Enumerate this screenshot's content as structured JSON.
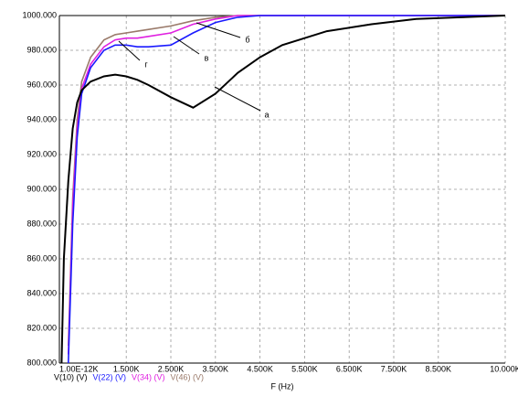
{
  "chart_data": {
    "type": "line",
    "x_label": "F (Hz)",
    "x": [
      50,
      100,
      200,
      300,
      400,
      500,
      700,
      1000,
      1250,
      1500,
      1750,
      2000,
      2500,
      3000,
      3500,
      4000,
      4500,
      5000,
      6000,
      7000,
      8000,
      9000,
      10000
    ],
    "series": [
      {
        "name": "V(10) (V)",
        "color": "#000000",
        "values": [
          800,
          860,
          905,
          935,
          950,
          957,
          962,
          965,
          966,
          965,
          963,
          960,
          953,
          947,
          955,
          967,
          976,
          983,
          991,
          995,
          998,
          999,
          1000
        ]
      },
      {
        "name": "V(22) (V)",
        "color": "#1a1aff",
        "values": [
          null,
          null,
          800,
          880,
          930,
          955,
          970,
          980,
          983,
          983,
          982,
          982,
          983,
          990,
          996,
          999,
          1000,
          1000,
          1000,
          1000,
          1000,
          1000,
          1000
        ]
      },
      {
        "name": "V(34) (V)",
        "color": "#e020e0",
        "values": [
          null,
          null,
          805,
          890,
          935,
          958,
          972,
          982,
          986,
          987,
          987,
          988,
          990,
          995,
          998,
          1000,
          1000,
          1000,
          1000,
          1000,
          1000,
          1000,
          1000
        ]
      },
      {
        "name": "V(46) (V)",
        "color": "#9a7a6a",
        "values": [
          null,
          null,
          810,
          895,
          940,
          962,
          976,
          986,
          989,
          990,
          991,
          992,
          994,
          997,
          999,
          1000,
          1000,
          1000,
          1000,
          1000,
          1000,
          1000,
          1000
        ]
      }
    ],
    "xlim": [
      0,
      10000
    ],
    "ylim": [
      800,
      1000
    ],
    "xticks": [
      {
        "value": 0,
        "label": "1.00E-12K"
      },
      {
        "value": 1500,
        "label": "1.500K"
      },
      {
        "value": 2500,
        "label": "2.500K"
      },
      {
        "value": 3500,
        "label": "3.500K"
      },
      {
        "value": 4500,
        "label": "4.500K"
      },
      {
        "value": 5500,
        "label": "5.500K"
      },
      {
        "value": 6500,
        "label": "6.500K"
      },
      {
        "value": 7500,
        "label": "7.500K"
      },
      {
        "value": 8500,
        "label": "8.500K"
      },
      {
        "value": 10000,
        "label": "10.000K"
      }
    ],
    "yticks": [
      {
        "value": 800,
        "label": "800.000"
      },
      {
        "value": 820,
        "label": "820.000"
      },
      {
        "value": 840,
        "label": "840.000"
      },
      {
        "value": 860,
        "label": "860.000"
      },
      {
        "value": 880,
        "label": "880.000"
      },
      {
        "value": 900,
        "label": "900.000"
      },
      {
        "value": 920,
        "label": "920.000"
      },
      {
        "value": 940,
        "label": "940.000"
      },
      {
        "value": 960,
        "label": "960.000"
      },
      {
        "value": 980,
        "label": "980.000"
      },
      {
        "value": 1000,
        "label": "1000.000"
      }
    ],
    "annotations": [
      "а",
      "б",
      "в",
      "г"
    ],
    "grid": true
  }
}
